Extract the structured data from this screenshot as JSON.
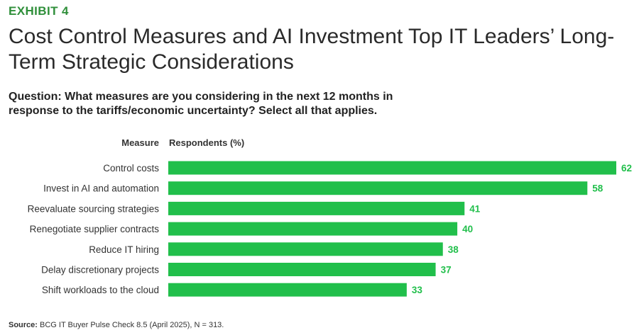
{
  "exhibit_label": "EXHIBIT 4",
  "title": "Cost Control Measures and AI Investment Top IT Leaders’ Long-Term Strategic Considerations",
  "question": "Question: What measures are you considering in the next 12 months in response to the tariffs/economic uncertainty? Select all that applies.",
  "source_label": "Source:",
  "source_text": " BCG IT Buyer Pulse Check 8.5 (April 2025), N = 313.",
  "colors": {
    "bar": "#21bf4b",
    "value_label": "#21bf4b",
    "exhibit": "#2f8f3a"
  },
  "chart_data": {
    "type": "bar",
    "orientation": "horizontal",
    "xlabel": "Respondents (%)",
    "ylabel": "Measure",
    "xlim": [
      0,
      62
    ],
    "categories": [
      "Control costs",
      "Invest in AI and automation",
      "Reevaluate sourcing strategies",
      "Renegotiate supplier contracts",
      "Reduce IT hiring",
      "Delay discretionary projects",
      "Shift workloads to the cloud"
    ],
    "values": [
      62,
      58,
      41,
      40,
      38,
      37,
      33
    ]
  }
}
